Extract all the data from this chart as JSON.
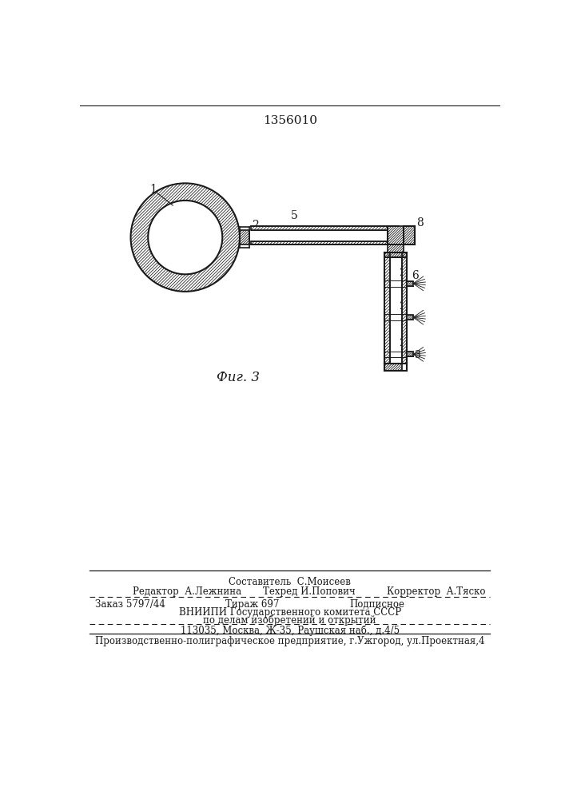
{
  "title": "1356010",
  "fig_label": "Фиг. 3",
  "bg_color": "#ffffff",
  "line_color": "#1a1a1a",
  "footer_line1_left": "Редактор  А.Лежнина",
  "footer_line1_center": "Техред И.Попович",
  "footer_line1_right": "Корректор  А.Тяско",
  "footer_line0_center": "Составитель  С.Моисеев",
  "footer_line2_left": "Заказ 5797/44",
  "footer_line2_center": "Тираж 697",
  "footer_line2_right": "Подписное",
  "footer_vniip1": "ВНИИПИ Государственного комитета СССР",
  "footer_vniip2": "по делам изобретений и открытий",
  "footer_addr": "113035, Москва, Ж-35, Раушская наб., д.4/5",
  "footer_prod": "Производственно-полиграфическое предприятие, г.Ужгород, ул.Проектная,4"
}
